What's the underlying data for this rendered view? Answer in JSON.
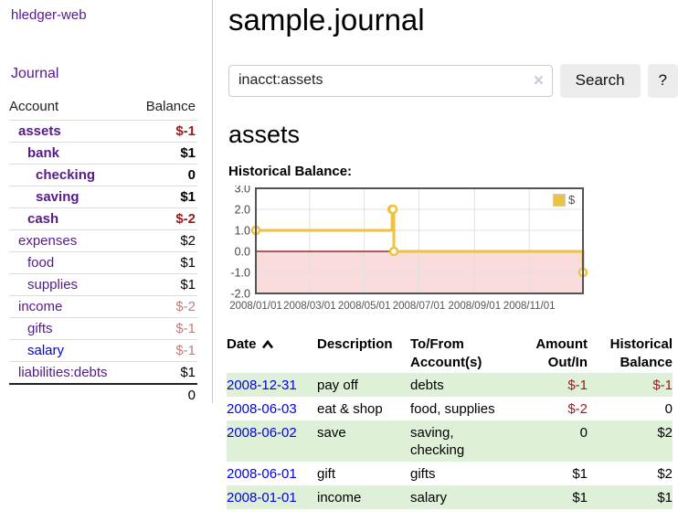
{
  "colors": {
    "link_purple": "#551a8b",
    "link_blue": "#0000ee",
    "negative_strong": "#971c1c",
    "negative_soft": "#bf7e7e",
    "row_highlight_green": "#dff0d8",
    "button_gray": "#ececec",
    "chart_line_yellow": "#edc240",
    "chart_negative_fill": "#fbdcdc",
    "chart_zero_line": "#8b0000"
  },
  "sidebar": {
    "app_title": "hledger-web",
    "nav": {
      "journal_label": "Journal"
    },
    "accounts_table": {
      "headers": {
        "account": "Account",
        "balance": "Balance"
      },
      "rows": [
        {
          "name": "assets",
          "depth": 1,
          "bold": true,
          "link_color": "purple",
          "balance": "$-1",
          "balance_style": "neg-bold"
        },
        {
          "name": "bank",
          "depth": 2,
          "bold": true,
          "link_color": "purple",
          "balance": "$1",
          "balance_style": "bold"
        },
        {
          "name": "checking",
          "depth": 3,
          "bold": true,
          "link_color": "purple",
          "balance": "0",
          "balance_style": "bold"
        },
        {
          "name": "saving",
          "depth": 3,
          "bold": true,
          "link_color": "purple",
          "balance": "$1",
          "balance_style": "bold"
        },
        {
          "name": "cash",
          "depth": 2,
          "bold": true,
          "link_color": "purple",
          "balance": "$-2",
          "balance_style": "neg-bold"
        },
        {
          "name": "expenses",
          "depth": 1,
          "bold": false,
          "link_color": "purple",
          "balance": "$2",
          "balance_style": "plain"
        },
        {
          "name": "food",
          "depth": 2,
          "bold": false,
          "link_color": "purple",
          "balance": "$1",
          "balance_style": "plain"
        },
        {
          "name": "supplies",
          "depth": 2,
          "bold": false,
          "link_color": "purple",
          "balance": "$1",
          "balance_style": "plain"
        },
        {
          "name": "income",
          "depth": 1,
          "bold": false,
          "link_color": "purple",
          "balance": "$-2",
          "balance_style": "neg-soft"
        },
        {
          "name": "gifts",
          "depth": 2,
          "bold": false,
          "link_color": "purple",
          "balance": "$-1",
          "balance_style": "neg-soft"
        },
        {
          "name": "salary",
          "depth": 2,
          "bold": false,
          "link_color": "blue",
          "balance": "$-1",
          "balance_style": "neg-soft"
        },
        {
          "name": "liabilities:debts",
          "depth": 1,
          "bold": false,
          "link_color": "purple",
          "balance": "$1",
          "balance_style": "plain"
        }
      ],
      "total": "0"
    }
  },
  "header": {
    "title": "sample.journal"
  },
  "search": {
    "query": "inacct:assets",
    "clear_icon": "✕",
    "search_button_label": "Search",
    "help_button_label": "?"
  },
  "account_page": {
    "title": "assets",
    "chart_label": "Historical Balance:"
  },
  "chart_data": {
    "type": "line",
    "step": true,
    "title": "Historical Balance",
    "series": [
      {
        "name": "$",
        "color": "#edc240",
        "points": [
          [
            "2008-01-01",
            1
          ],
          [
            "2008-06-01",
            2
          ],
          [
            "2008-06-02",
            2
          ],
          [
            "2008-06-03",
            0
          ],
          [
            "2008-12-31",
            -1
          ]
        ]
      }
    ],
    "xlim": [
      "2008-01-01",
      "2008-12-31"
    ],
    "ylim": [
      -2,
      3
    ],
    "y_ticks": [
      "3.0",
      "2.0",
      "1.0",
      "0.0",
      "-1.0",
      "-2.0"
    ],
    "x_ticks": [
      "2008/01/01",
      "2008/03/01",
      "2008/05/01",
      "2008/07/01",
      "2008/09/01",
      "2008/11/01"
    ],
    "grid": true,
    "legend": {
      "position": "top-right",
      "label": "$"
    },
    "negative_region_color": "#fbdcdc",
    "zero_line_color": "#8b0000"
  },
  "register_table": {
    "headers": {
      "date": "Date",
      "description": "Description",
      "accounts": "To/From\nAccount(s)",
      "amount": "Amount\nOut/In",
      "balance": "Historical\nBalance"
    },
    "rows": [
      {
        "date": "2008-12-31",
        "description": "pay off",
        "accounts": "debts",
        "amount": "$-1",
        "amount_negative": true,
        "balance": "$-1",
        "balance_negative": true,
        "highlight": true
      },
      {
        "date": "2008-06-03",
        "description": "eat & shop",
        "accounts": "food, supplies",
        "amount": "$-2",
        "amount_negative": true,
        "balance": "0",
        "balance_negative": false,
        "highlight": false
      },
      {
        "date": "2008-06-02",
        "description": "save",
        "accounts": "saving,\nchecking",
        "amount": "0",
        "amount_negative": false,
        "balance": "$2",
        "balance_negative": false,
        "highlight": true
      },
      {
        "date": "2008-06-01",
        "description": "gift",
        "accounts": "gifts",
        "amount": "$1",
        "amount_negative": false,
        "balance": "$2",
        "balance_negative": false,
        "highlight": false
      },
      {
        "date": "2008-01-01",
        "description": "income",
        "accounts": "salary",
        "amount": "$1",
        "amount_negative": false,
        "balance": "$1",
        "balance_negative": false,
        "highlight": true
      }
    ]
  }
}
